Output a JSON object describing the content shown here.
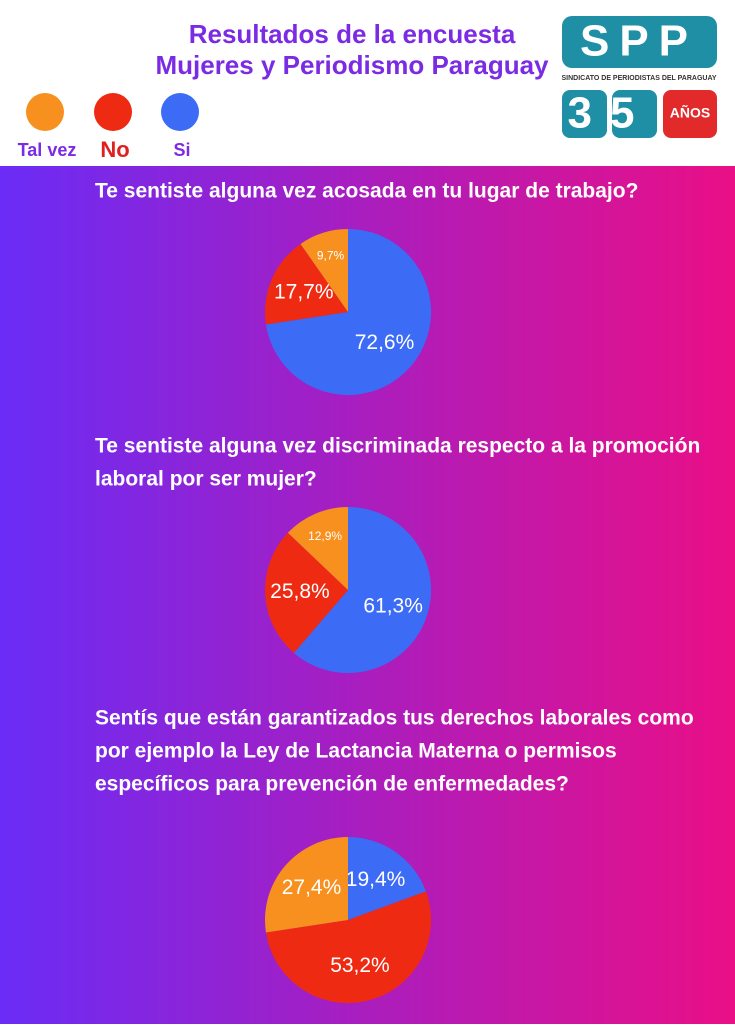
{
  "header": {
    "title_lines": [
      "Resultados de la encuesta",
      "Mujeres y Periodismo Paraguay"
    ],
    "logo": {
      "name": "SPP",
      "subtitle": "SINDICATO DE PERIODISTAS DEL PARAGUAY",
      "number": "35",
      "unit": "AÑOS"
    }
  },
  "legend": {
    "labels": [
      "Tal vez",
      "No",
      "Si"
    ],
    "colors": [
      "#f7901e",
      "#ee2a12",
      "#3c6cf6"
    ]
  },
  "chart_data": [
    {
      "type": "pie",
      "title_lines": [
        "Te sentiste alguna vez acosada en tu lugar de trabajo?"
      ],
      "categories": [
        "Tal vez",
        "No",
        "Si"
      ],
      "values": [
        9.7,
        17.7,
        72.6
      ],
      "value_labels": [
        "9,7%",
        "17,7%",
        "72,6%"
      ],
      "colors": [
        "#f7901e",
        "#ee2a12",
        "#3c6cf6"
      ]
    },
    {
      "type": "pie",
      "title_lines": [
        "Te sentiste alguna vez discriminada respecto a la promoción",
        "laboral por ser mujer?"
      ],
      "categories": [
        "Tal vez",
        "No",
        "Si"
      ],
      "values": [
        12.9,
        25.8,
        61.3
      ],
      "value_labels": [
        "12,9%",
        "25,8%",
        "61,3%"
      ],
      "colors": [
        "#f7901e",
        "#ee2a12",
        "#3c6cf6"
      ]
    },
    {
      "type": "pie",
      "title_lines": [
        "Sentís que están garantizados tus derechos laborales como",
        "por ejemplo la Ley de Lactancia Materna o permisos",
        "específicos para prevención de enfermedades?"
      ],
      "categories": [
        "Tal vez",
        "No",
        "Si"
      ],
      "values": [
        27.4,
        53.2,
        19.4
      ],
      "value_labels": [
        "27,4%",
        "53,2%",
        "19,4%"
      ],
      "colors": [
        "#f7901e",
        "#ee2a12",
        "#3c6cf6"
      ]
    }
  ]
}
